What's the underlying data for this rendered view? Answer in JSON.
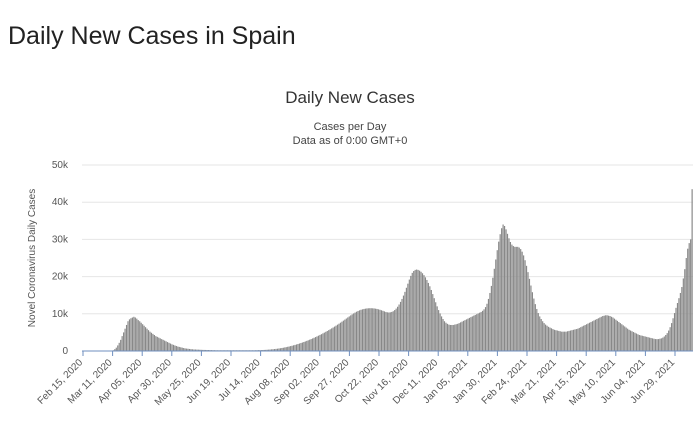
{
  "page": {
    "heading": "Daily New Cases in Spain"
  },
  "chart_data": {
    "type": "bar",
    "title": "Daily New Cases",
    "subtitle_lines": [
      "Cases per Day",
      "Data as of 0:00 GMT+0"
    ],
    "xlabel": "",
    "ylabel": "Novel Coronavirus Daily Cases",
    "ylim": [
      0,
      50000
    ],
    "yticks": [
      0,
      10000,
      20000,
      30000,
      40000,
      50000
    ],
    "ytick_labels": [
      "0",
      "10k",
      "20k",
      "30k",
      "40k",
      "50k"
    ],
    "x_start": "Feb 15, 2020",
    "x_end": "Jul 19, 2021",
    "xtick_labels": [
      "Feb 15, 2020",
      "Mar 11, 2020",
      "Apr 05, 2020",
      "Apr 30, 2020",
      "May 25, 2020",
      "Jun 19, 2020",
      "Jul 14, 2020",
      "Aug 08, 2020",
      "Sep 02, 2020",
      "Sep 27, 2020",
      "Oct 22, 2020",
      "Nov 16, 2020",
      "Dec 11, 2020",
      "Jan 05, 2021",
      "Jan 30, 2021",
      "Feb 24, 2021",
      "Mar 21, 2021",
      "Apr 15, 2021",
      "May 10, 2021",
      "Jun 04, 2021",
      "Jun 29, 2021"
    ],
    "bar_color": "#888888",
    "series": [
      {
        "values": [
          0,
          0,
          0,
          0,
          0,
          0,
          0,
          0,
          0,
          0,
          0,
          0,
          0,
          0,
          0,
          0,
          0,
          0,
          0,
          0,
          100,
          200,
          500,
          900,
          1500,
          2200,
          3000,
          4000,
          5000,
          6000,
          7000,
          8000,
          8500,
          8800,
          9000,
          9200,
          9000,
          8700,
          8300,
          8000,
          7600,
          7200,
          6800,
          6400,
          6000,
          5600,
          5200,
          4900,
          4600,
          4300,
          4000,
          3800,
          3600,
          3400,
          3200,
          3000,
          2800,
          2600,
          2400,
          2200,
          2000,
          1800,
          1650,
          1500,
          1350,
          1200,
          1100,
          1000,
          900,
          800,
          700,
          650,
          600,
          550,
          500,
          450,
          420,
          400,
          380,
          360,
          340,
          320,
          300,
          290,
          280,
          270,
          260,
          250,
          240,
          230,
          220,
          210,
          200,
          200,
          200,
          200,
          200,
          200,
          200,
          200,
          200,
          200,
          200,
          200,
          200,
          200,
          200,
          200,
          200,
          200,
          200,
          200,
          200,
          200,
          200,
          200,
          200,
          200,
          210,
          220,
          230,
          240,
          250,
          270,
          290,
          310,
          340,
          370,
          400,
          440,
          480,
          520,
          570,
          620,
          680,
          740,
          810,
          880,
          960,
          1040,
          1130,
          1220,
          1320,
          1420,
          1530,
          1640,
          1760,
          1880,
          2010,
          2140,
          2280,
          2420,
          2570,
          2720,
          2880,
          3040,
          3210,
          3380,
          3560,
          3740,
          3930,
          4120,
          4320,
          4520,
          4730,
          4940,
          5160,
          5380,
          5610,
          5840,
          6080,
          6320,
          6570,
          6820,
          7080,
          7340,
          7610,
          7880,
          8160,
          8440,
          8730,
          9020,
          9300,
          9580,
          9850,
          10100,
          10340,
          10560,
          10760,
          10930,
          11080,
          11200,
          11300,
          11380,
          11440,
          11480,
          11500,
          11500,
          11480,
          11440,
          11380,
          11300,
          11200,
          11080,
          10950,
          10800,
          10650,
          10500,
          10400,
          10350,
          10400,
          10500,
          10700,
          11000,
          11400,
          11900,
          12500,
          13200,
          14000,
          14900,
          15900,
          17000,
          18100,
          19200,
          20200,
          21000,
          21500,
          21800,
          21900,
          21800,
          21600,
          21300,
          20900,
          20400,
          19800,
          19100,
          18300,
          17400,
          16400,
          15300,
          14200,
          13100,
          12000,
          11000,
          10100,
          9300,
          8600,
          8000,
          7600,
          7300,
          7100,
          7000,
          7000,
          7000,
          7100,
          7200,
          7300,
          7500,
          7700,
          7900,
          8100,
          8300,
          8500,
          8700,
          8900,
          9100,
          9300,
          9500,
          9700,
          9900,
          10100,
          10300,
          10500,
          10800,
          11200,
          11800,
          12700,
          14000,
          15600,
          17500,
          19700,
          22100,
          24600,
          27100,
          29400,
          31400,
          33000,
          34000,
          33600,
          32700,
          31500,
          30300,
          29300,
          28600,
          28200,
          28000,
          28000,
          28000,
          27800,
          27400,
          26700,
          25700,
          24400,
          22900,
          21200,
          19400,
          17600,
          15800,
          14100,
          12600,
          11300,
          10200,
          9300,
          8600,
          8000,
          7500,
          7100,
          6800,
          6500,
          6300,
          6100,
          5900,
          5700,
          5600,
          5500,
          5400,
          5300,
          5200,
          5200,
          5200,
          5200,
          5300,
          5400,
          5500,
          5600,
          5700,
          5800,
          5900,
          6000,
          6200,
          6400,
          6600,
          6800,
          7000,
          7200,
          7400,
          7600,
          7800,
          8000,
          8200,
          8400,
          8600,
          8800,
          9000,
          9200,
          9400,
          9500,
          9600,
          9600,
          9500,
          9400,
          9200,
          9000,
          8700,
          8400,
          8100,
          7800,
          7500,
          7200,
          6900,
          6600,
          6300,
          6000,
          5700,
          5500,
          5300,
          5100,
          4900,
          4700,
          4500,
          4300,
          4200,
          4100,
          4000,
          3900,
          3800,
          3700,
          3600,
          3500,
          3400,
          3300,
          3200,
          3200,
          3200,
          3300,
          3400,
          3600,
          3900,
          4300,
          4800,
          5500,
          6400,
          7500,
          8800,
          10200,
          11600,
          12900,
          14200,
          15600,
          17200,
          19500,
          22000,
          25000,
          27500,
          29000,
          30000,
          43500
        ]
      }
    ]
  }
}
